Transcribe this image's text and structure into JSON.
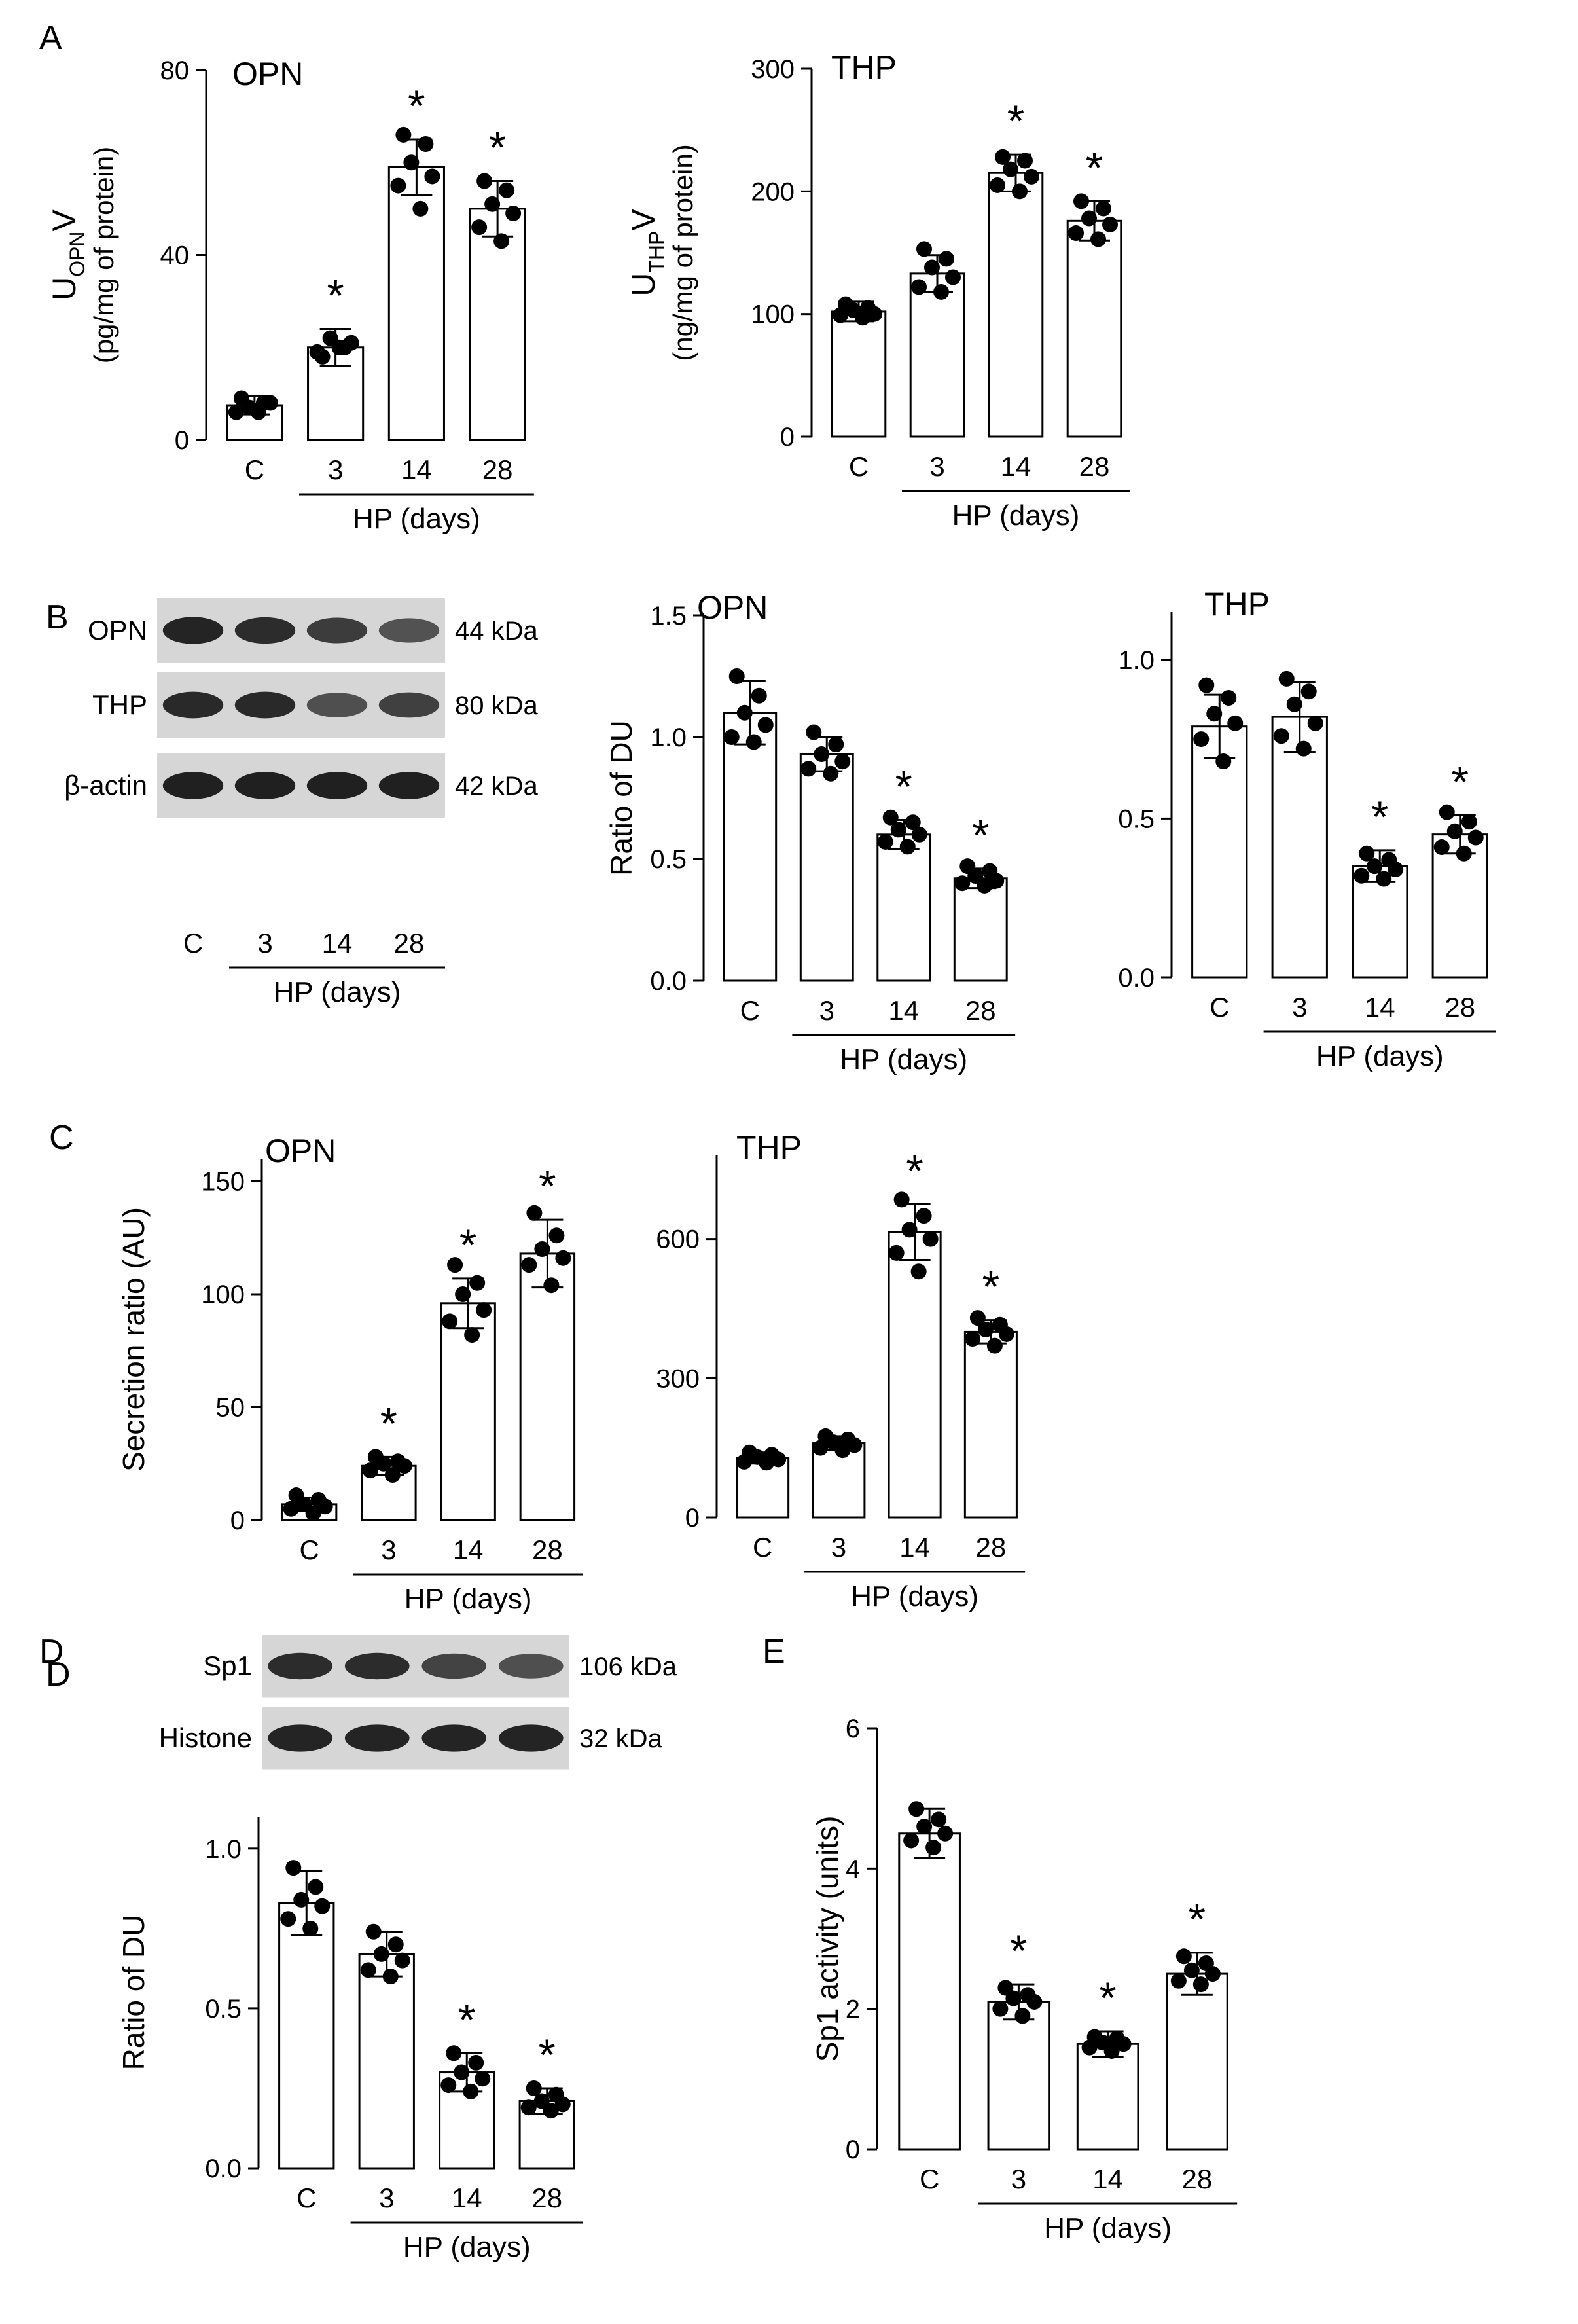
{
  "chart_data": [
    {
      "panel": "A",
      "type": "bar",
      "title": "OPN",
      "categories": [
        "C",
        "3",
        "14",
        "28"
      ],
      "group_label": "HP (days)",
      "ylabel": [
        "U",
        "OPN",
        "V",
        "(pg/mg of protein)"
      ],
      "ylim": [
        0,
        80
      ],
      "yticks": [
        "0",
        "40",
        "80"
      ],
      "values": [
        7.5,
        20,
        59,
        50
      ],
      "errors": [
        2,
        4,
        6,
        6
      ],
      "points": [
        [
          9,
          8,
          7,
          8,
          6,
          6
        ],
        [
          18,
          20,
          22,
          21,
          19,
          20
        ],
        [
          66,
          64,
          60,
          57,
          55,
          50
        ],
        [
          56,
          54,
          51,
          49,
          46,
          43
        ]
      ],
      "significant": [
        false,
        true,
        true,
        true
      ]
    },
    {
      "panel": "",
      "type": "bar",
      "title": "THP",
      "categories": [
        "C",
        "3",
        "14",
        "28"
      ],
      "group_label": "HP (days)",
      "ylabel": [
        "U",
        "THP",
        "V",
        "(ng/mg of protein)"
      ],
      "ylim": [
        0,
        300
      ],
      "yticks": [
        "0",
        "100",
        "200",
        "300"
      ],
      "values": [
        102,
        133,
        215,
        176
      ],
      "errors": [
        8,
        15,
        15,
        16
      ],
      "points": [
        [
          108,
          105,
          103,
          100,
          99,
          97
        ],
        [
          153,
          145,
          138,
          130,
          122,
          118
        ],
        [
          228,
          225,
          218,
          212,
          205,
          200
        ],
        [
          192,
          186,
          178,
          173,
          166,
          161
        ]
      ],
      "significant": [
        false,
        false,
        true,
        true
      ]
    },
    {
      "panel": "B",
      "type": "bar",
      "title": "OPN",
      "categories": [
        "C",
        "3",
        "14",
        "28"
      ],
      "group_label": "HP (days)",
      "ylabel": [
        "Ratio of DU"
      ],
      "ylim": [
        0,
        1.5
      ],
      "yticks": [
        "0.0",
        "0.5",
        "1.0",
        "1.5"
      ],
      "values": [
        1.1,
        0.93,
        0.6,
        0.42
      ],
      "errors": [
        0.13,
        0.07,
        0.06,
        0.04
      ],
      "points": [
        [
          1.25,
          1.17,
          1.1,
          1.05,
          1.0,
          0.98
        ],
        [
          1.02,
          0.97,
          0.93,
          0.9,
          0.87,
          0.85
        ],
        [
          0.67,
          0.65,
          0.62,
          0.6,
          0.57,
          0.55
        ],
        [
          0.47,
          0.45,
          0.43,
          0.41,
          0.4,
          0.39
        ]
      ],
      "significant": [
        false,
        false,
        true,
        true
      ]
    },
    {
      "panel": "",
      "type": "bar",
      "title": "THP",
      "categories": [
        "C",
        "3",
        "14",
        "28"
      ],
      "group_label": "HP (days)",
      "ylabel": [],
      "ylim": [
        0,
        1.15
      ],
      "yticks": [
        "0.0",
        "0.5",
        "1.0"
      ],
      "values": [
        0.79,
        0.82,
        0.35,
        0.45
      ],
      "errors": [
        0.1,
        0.11,
        0.05,
        0.06
      ],
      "points": [
        [
          0.92,
          0.88,
          0.83,
          0.8,
          0.75,
          0.68
        ],
        [
          0.94,
          0.9,
          0.86,
          0.8,
          0.76,
          0.72
        ],
        [
          0.39,
          0.37,
          0.35,
          0.34,
          0.32,
          0.31
        ],
        [
          0.52,
          0.49,
          0.46,
          0.44,
          0.41,
          0.39
        ]
      ],
      "significant": [
        false,
        false,
        true,
        true
      ]
    },
    {
      "panel": "C",
      "type": "bar",
      "title": "OPN",
      "categories": [
        "C",
        "3",
        "14",
        "28"
      ],
      "group_label": "HP (days)",
      "ylabel": [
        "Secretion ratio (AU)"
      ],
      "ylim": [
        0,
        160
      ],
      "yticks": [
        "0",
        "50",
        "100",
        "150"
      ],
      "values": [
        7,
        24,
        96,
        118
      ],
      "errors": [
        3,
        4,
        11,
        15
      ],
      "points": [
        [
          11,
          9,
          7,
          6,
          5,
          3
        ],
        [
          28,
          26,
          25,
          24,
          22,
          20
        ],
        [
          113,
          105,
          100,
          93,
          88,
          82
        ],
        [
          136,
          126,
          120,
          116,
          113,
          104
        ]
      ],
      "significant": [
        false,
        true,
        true,
        true
      ]
    },
    {
      "panel": "",
      "type": "bar",
      "title": "THP",
      "categories": [
        "C",
        "3",
        "14",
        "28"
      ],
      "group_label": "HP (days)",
      "ylabel": [],
      "ylim": [
        0,
        780
      ],
      "yticks": [
        "0",
        "300",
        "600"
      ],
      "values": [
        128,
        160,
        615,
        400
      ],
      "errors": [
        12,
        15,
        60,
        25
      ],
      "points": [
        [
          140,
          135,
          130,
          125,
          120,
          118
        ],
        [
          175,
          168,
          162,
          156,
          150,
          145
        ],
        [
          685,
          650,
          620,
          600,
          570,
          530
        ],
        [
          430,
          415,
          405,
          395,
          385,
          370
        ]
      ],
      "significant": [
        false,
        false,
        true,
        true
      ]
    },
    {
      "panel": "D",
      "type": "bar",
      "title": "",
      "categories": [
        "C",
        "3",
        "14",
        "28"
      ],
      "group_label": "HP (days)",
      "ylabel": [
        "Ratio of DU"
      ],
      "ylim": [
        0,
        1.1
      ],
      "yticks": [
        "0.0",
        "0.5",
        "1.0"
      ],
      "values": [
        0.83,
        0.67,
        0.3,
        0.21
      ],
      "errors": [
        0.1,
        0.07,
        0.06,
        0.04
      ],
      "points": [
        [
          0.94,
          0.88,
          0.84,
          0.82,
          0.78,
          0.75
        ],
        [
          0.74,
          0.7,
          0.67,
          0.65,
          0.62,
          0.6
        ],
        [
          0.36,
          0.33,
          0.3,
          0.28,
          0.26,
          0.24
        ],
        [
          0.25,
          0.23,
          0.21,
          0.2,
          0.19,
          0.18
        ]
      ],
      "significant": [
        false,
        false,
        true,
        true
      ]
    },
    {
      "panel": "E",
      "type": "bar",
      "title": "",
      "categories": [
        "C",
        "3",
        "14",
        "28"
      ],
      "group_label": "HP (days)",
      "ylabel": [
        "Sp1 activity (units)"
      ],
      "ylim": [
        0,
        6
      ],
      "yticks": [
        "0",
        "2",
        "4",
        "6"
      ],
      "values": [
        4.5,
        2.1,
        1.5,
        2.5
      ],
      "errors": [
        0.35,
        0.25,
        0.18,
        0.3
      ],
      "points": [
        [
          4.85,
          4.7,
          4.6,
          4.5,
          4.4,
          4.3
        ],
        [
          2.3,
          2.2,
          2.15,
          2.1,
          2.0,
          1.9
        ],
        [
          1.6,
          1.58,
          1.52,
          1.5,
          1.45,
          1.4
        ],
        [
          2.75,
          2.65,
          2.55,
          2.5,
          2.4,
          2.35
        ]
      ],
      "significant": [
        false,
        true,
        true,
        true
      ]
    }
  ],
  "blots": [
    {
      "panel": "B",
      "lane_labels": [
        "C",
        "3",
        "14",
        "28"
      ],
      "group_label": "HP (days)",
      "rows": [
        {
          "label": "OPN",
          "size": "44 kDa",
          "intensity": [
            0.95,
            0.9,
            0.82,
            0.7
          ]
        },
        {
          "label": "THP",
          "size": "80 kDa",
          "intensity": [
            0.92,
            0.92,
            0.72,
            0.8
          ]
        },
        {
          "label": "β-actin",
          "size": "42 kDa",
          "intensity": [
            0.97,
            0.97,
            0.97,
            0.97
          ]
        }
      ]
    },
    {
      "panel": "D",
      "rows": [
        {
          "label": "Sp1",
          "size": "106 kDa",
          "intensity": [
            0.9,
            0.9,
            0.78,
            0.72
          ]
        },
        {
          "label": "Histone",
          "size": "32 kDa",
          "intensity": [
            0.95,
            0.95,
            0.95,
            0.95
          ]
        }
      ]
    }
  ],
  "significance_marker": "*",
  "colors": {
    "bar_fill": "#ffffff",
    "ink": "#000000",
    "blot_band": "#1a1a1a",
    "blot_bg": "#d6d6d6"
  }
}
